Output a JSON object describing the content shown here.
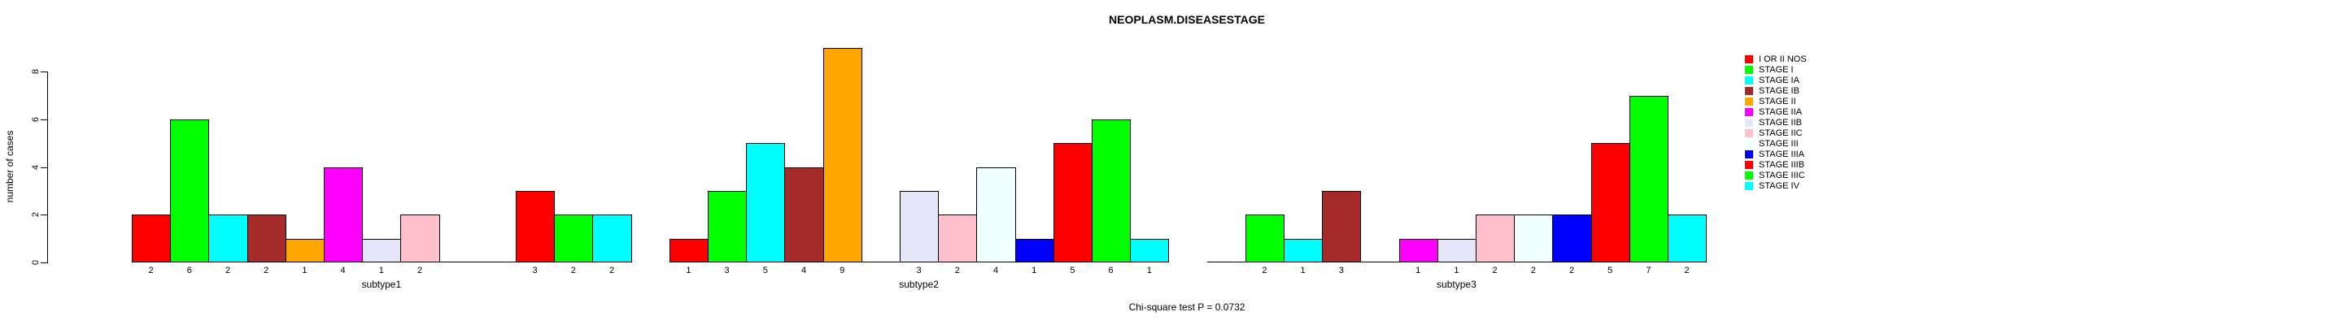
{
  "title": "NEOPLASM.DISEASESTAGE",
  "footnote": "Chi-square test P = 0.0732",
  "chart_data": {
    "type": "bar",
    "title": "NEOPLASM.DISEASESTAGE",
    "xlabel": "",
    "ylabel": "number of cases",
    "yticks": [
      0,
      2,
      4,
      6,
      8
    ],
    "ylim": [
      0,
      9
    ],
    "grid": false,
    "legend_position": "right",
    "bar_labels_shown": true,
    "categories": [
      "I OR II NOS",
      "STAGE I",
      "STAGE IA",
      "STAGE IB",
      "STAGE II",
      "STAGE IIA",
      "STAGE IIB",
      "STAGE IIC",
      "STAGE III",
      "STAGE IIIA",
      "STAGE IIIB",
      "STAGE IIIC",
      "STAGE IV"
    ],
    "category_colors": [
      "#FF0000",
      "#00FF00",
      "#00FFFF",
      "#A52A2A",
      "#FFA500",
      "#FF00FF",
      "#E6E6FA",
      "#FFC0CB",
      "#F0FFFF",
      "#0000FF",
      "#FF0000",
      "#00FF00",
      "#00FFFF"
    ],
    "groups": [
      "subtype1",
      "subtype2",
      "subtype3"
    ],
    "series": [
      {
        "name": "subtype1",
        "values": [
          2,
          6,
          2,
          2,
          1,
          4,
          1,
          2,
          0,
          0,
          3,
          2,
          2
        ]
      },
      {
        "name": "subtype2",
        "values": [
          1,
          3,
          5,
          4,
          9,
          0,
          3,
          2,
          4,
          1,
          5,
          6,
          1
        ]
      },
      {
        "name": "subtype3",
        "values": [
          0,
          2,
          1,
          3,
          0,
          1,
          1,
          2,
          2,
          2,
          5,
          7,
          2
        ]
      }
    ],
    "annotations": [
      "Chi-square test P = 0.0732"
    ],
    "bar_border_color": "#000000",
    "background_color": "#FFFFFF"
  }
}
